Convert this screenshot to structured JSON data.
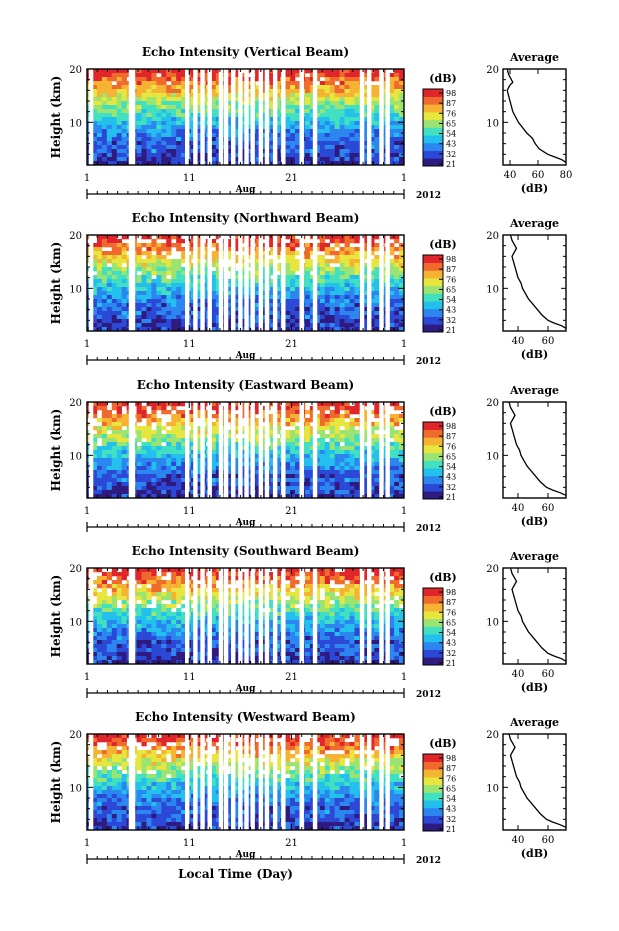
{
  "figure": {
    "xlabel": "Local Time (Day)"
  },
  "colorbar": {
    "label": "(dB)",
    "tick_labels": [
      "98",
      "87",
      "76",
      "65",
      "54",
      "43",
      "32",
      "21"
    ],
    "colors": [
      "#2f1a80",
      "#2b49d6",
      "#2c86f0",
      "#23c0ee",
      "#40e0c0",
      "#9be472",
      "#e7e63e",
      "#f6b233",
      "#ef6a2c",
      "#e0262a"
    ]
  },
  "chart_data": [
    {
      "type": "heatmap",
      "title": "Echo Intensity (Vertical Beam)",
      "ylabel": "Height (km)",
      "ylim": [
        2,
        20
      ],
      "yticks": [
        "20",
        "10"
      ],
      "xticks": [
        "1",
        "11",
        "21",
        "1"
      ],
      "month_label": "Aug",
      "year_label": "2012",
      "data_gaps_day": [
        1.4,
        5.3,
        5.5,
        10.8,
        11.6,
        12.3,
        13.0,
        14.1,
        14.6,
        15.3,
        16.0,
        16.6,
        17.2,
        18.0,
        18.6,
        19.4,
        20.2,
        22.0,
        23.3,
        27.9,
        28.6,
        29.8,
        30.4
      ],
      "profile": {
        "title": "Average",
        "xlabel": "(dB)",
        "xticks": [
          "40",
          "60",
          "80"
        ],
        "xlim": [
          35,
          80
        ],
        "height_km": [
          2.5,
          3.0,
          3.5,
          4.0,
          5.0,
          6.0,
          7.0,
          8.0,
          9.0,
          10.0,
          11.0,
          12.0,
          13.0,
          14.0,
          15.0,
          16.0,
          17.0,
          17.5,
          18.0,
          19.0,
          20.0
        ],
        "value_db": [
          80,
          77,
          72,
          67,
          61,
          58,
          56,
          52,
          49,
          46,
          44,
          42,
          41,
          40,
          39,
          38,
          40,
          42,
          41,
          39,
          38
        ]
      }
    },
    {
      "type": "heatmap",
      "title": "Echo Intensity (Northward Beam)",
      "ylabel": "Height (km)",
      "ylim": [
        2,
        20
      ],
      "yticks": [
        "20",
        "10"
      ],
      "xticks": [
        "1",
        "11",
        "21",
        "1"
      ],
      "month_label": "Aug",
      "year_label": "2012",
      "data_gaps_day": [
        1.4,
        5.3,
        5.5,
        10.8,
        11.6,
        12.3,
        13.0,
        14.1,
        14.6,
        15.3,
        16.0,
        16.6,
        17.2,
        18.0,
        18.6,
        19.4,
        20.2,
        22.0,
        23.3,
        27.9,
        28.6,
        29.8,
        30.4
      ],
      "profile": {
        "title": "Average",
        "xlabel": "(dB)",
        "xticks": [
          "40",
          "60"
        ],
        "xlim": [
          30,
          72
        ],
        "height_km": [
          2.5,
          3.0,
          3.5,
          4.0,
          5.0,
          6.0,
          7.0,
          8.0,
          9.0,
          10.0,
          11.0,
          12.0,
          13.0,
          14.0,
          15.0,
          16.0,
          17.0,
          17.5,
          18.0,
          19.0,
          20.0
        ],
        "value_db": [
          72,
          69,
          64,
          60,
          56,
          53,
          50,
          47,
          45,
          43,
          42,
          40,
          39,
          38,
          37,
          36,
          38,
          39,
          38,
          36,
          35
        ]
      }
    },
    {
      "type": "heatmap",
      "title": "Echo Intensity (Eastward Beam)",
      "ylabel": "Height (km)",
      "ylim": [
        2,
        20
      ],
      "yticks": [
        "20",
        "10"
      ],
      "xticks": [
        "1",
        "11",
        "21",
        "1"
      ],
      "month_label": "Aug",
      "year_label": "2012",
      "data_gaps_day": [
        1.4,
        5.3,
        5.5,
        10.8,
        11.6,
        12.3,
        13.0,
        14.1,
        14.6,
        15.3,
        16.0,
        16.6,
        17.2,
        18.0,
        18.6,
        19.4,
        20.2,
        22.0,
        23.3,
        27.9,
        28.6,
        29.8,
        30.4
      ],
      "profile": {
        "title": "Average",
        "xlabel": "(dB)",
        "xticks": [
          "40",
          "60"
        ],
        "xlim": [
          30,
          72
        ],
        "height_km": [
          2.5,
          3.0,
          3.5,
          4.0,
          5.0,
          6.0,
          7.0,
          8.0,
          9.0,
          10.0,
          11.0,
          12.0,
          13.0,
          14.0,
          15.0,
          16.0,
          17.0,
          17.5,
          18.0,
          19.0,
          20.0
        ],
        "value_db": [
          72,
          68,
          63,
          59,
          55,
          52,
          49,
          46,
          44,
          42,
          41,
          39,
          38,
          37,
          36,
          35,
          37,
          38,
          37,
          35,
          34
        ]
      }
    },
    {
      "type": "heatmap",
      "title": "Echo Intensity (Southward Beam)",
      "ylabel": "Height (km)",
      "ylim": [
        2,
        20
      ],
      "yticks": [
        "20",
        "10"
      ],
      "xticks": [
        "1",
        "11",
        "21",
        "1"
      ],
      "month_label": "Aug",
      "year_label": "2012",
      "data_gaps_day": [
        1.4,
        5.3,
        5.5,
        10.8,
        11.6,
        12.3,
        13.0,
        14.1,
        14.6,
        15.3,
        16.0,
        16.6,
        17.2,
        18.0,
        18.6,
        19.4,
        20.2,
        22.0,
        23.3,
        27.9,
        28.6,
        29.8,
        30.4
      ],
      "profile": {
        "title": "Average",
        "xlabel": "(dB)",
        "xticks": [
          "40",
          "60"
        ],
        "xlim": [
          30,
          72
        ],
        "height_km": [
          2.5,
          3.0,
          3.5,
          4.0,
          5.0,
          6.0,
          7.0,
          8.0,
          9.0,
          10.0,
          11.0,
          12.0,
          13.0,
          14.0,
          15.0,
          16.0,
          17.0,
          17.5,
          18.0,
          19.0,
          20.0
        ],
        "value_db": [
          72,
          69,
          64,
          60,
          56,
          53,
          50,
          47,
          45,
          43,
          42,
          40,
          39,
          38,
          37,
          36,
          38,
          39,
          38,
          36,
          35
        ]
      }
    },
    {
      "type": "heatmap",
      "title": "Echo Intensity (Westward Beam)",
      "ylabel": "Height (km)",
      "ylim": [
        2,
        20
      ],
      "yticks": [
        "20",
        "10"
      ],
      "xticks": [
        "1",
        "11",
        "21",
        "1"
      ],
      "month_label": "Aug",
      "year_label": "2012",
      "data_gaps_day": [
        1.4,
        5.3,
        5.5,
        10.8,
        11.6,
        12.3,
        13.0,
        14.1,
        14.6,
        15.3,
        16.0,
        16.6,
        17.2,
        18.0,
        18.6,
        19.4,
        20.2,
        22.0,
        23.3,
        27.9,
        28.6,
        29.8,
        30.4
      ],
      "profile": {
        "title": "Average",
        "xlabel": "(dB)",
        "xticks": [
          "40",
          "60"
        ],
        "xlim": [
          30,
          72
        ],
        "height_km": [
          2.5,
          3.0,
          3.5,
          4.0,
          5.0,
          6.0,
          7.0,
          8.0,
          9.0,
          10.0,
          11.0,
          12.0,
          13.0,
          14.0,
          15.0,
          16.0,
          17.0,
          17.5,
          18.0,
          19.0,
          20.0
        ],
        "value_db": [
          72,
          68,
          63,
          59,
          55,
          52,
          49,
          46,
          44,
          42,
          41,
          39,
          38,
          37,
          36,
          35,
          37,
          38,
          37,
          35,
          34
        ]
      }
    }
  ]
}
